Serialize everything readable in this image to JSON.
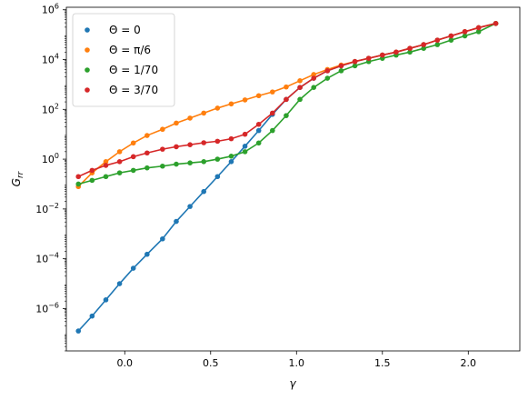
{
  "chart_data": {
    "type": "scatter",
    "xlabel": "γ",
    "ylabel_base": "G",
    "ylabel_sub": "rr",
    "y_scale": "log",
    "xlim": [
      -0.34,
      2.3
    ],
    "ylim_exp": [
      -7.7,
      6.1
    ],
    "x_ticks": [
      0.0,
      0.5,
      1.0,
      1.5,
      2.0
    ],
    "x_tick_labels": [
      "0.0",
      "0.5",
      "1.0",
      "1.5",
      "2.0"
    ],
    "y_ticks_exp": [
      -6,
      -4,
      -2,
      0,
      2,
      4,
      6
    ],
    "y_tick_labels_base": "10",
    "grid": false,
    "legend_position": "top-left",
    "x": [
      -0.27,
      -0.19,
      -0.11,
      -0.03,
      0.05,
      0.13,
      0.22,
      0.3,
      0.38,
      0.46,
      0.54,
      0.62,
      0.7,
      0.78,
      0.86,
      0.94,
      1.02,
      1.1,
      1.18,
      1.26,
      1.34,
      1.42,
      1.5,
      1.58,
      1.66,
      1.74,
      1.82,
      1.9,
      1.98,
      2.06,
      2.16
    ],
    "series": [
      {
        "legend_text": "Θ = 0",
        "color": "#1f77b4",
        "log10_y": [
          -6.9,
          -6.3,
          -5.65,
          -5.0,
          -4.38,
          -3.82,
          -3.2,
          -2.5,
          -1.9,
          -1.3,
          -0.7,
          -0.1,
          0.52,
          1.15,
          1.8,
          2.4,
          2.88,
          3.25,
          3.55,
          3.75,
          3.92,
          4.05,
          4.18,
          4.3,
          4.45,
          4.6,
          4.78,
          4.95,
          5.12,
          5.28,
          5.45
        ]
      },
      {
        "legend_text": "Θ = π/6",
        "color": "#ff7f0e",
        "log10_y": [
          -1.1,
          -0.55,
          -0.1,
          0.3,
          0.65,
          0.95,
          1.2,
          1.45,
          1.65,
          1.85,
          2.05,
          2.22,
          2.38,
          2.55,
          2.7,
          2.9,
          3.15,
          3.4,
          3.6,
          3.78,
          3.92,
          4.05,
          4.18,
          4.3,
          4.45,
          4.6,
          4.78,
          4.95,
          5.12,
          5.28,
          5.45
        ]
      },
      {
        "legend_text": "Θ = 1/70",
        "color": "#2ca02c",
        "log10_y": [
          -1.0,
          -0.85,
          -0.7,
          -0.55,
          -0.45,
          -0.35,
          -0.28,
          -0.2,
          -0.15,
          -0.1,
          0.0,
          0.12,
          0.3,
          0.65,
          1.15,
          1.75,
          2.4,
          2.88,
          3.25,
          3.55,
          3.75,
          3.92,
          4.05,
          4.18,
          4.3,
          4.45,
          4.6,
          4.78,
          4.95,
          5.12,
          5.45
        ]
      },
      {
        "legend_text": "Θ = 3/70",
        "color": "#d62728",
        "log10_y": [
          -0.7,
          -0.45,
          -0.25,
          -0.1,
          0.1,
          0.25,
          0.4,
          0.5,
          0.58,
          0.66,
          0.72,
          0.82,
          1.0,
          1.4,
          1.85,
          2.4,
          2.88,
          3.25,
          3.55,
          3.75,
          3.92,
          4.05,
          4.18,
          4.3,
          4.45,
          4.6,
          4.78,
          4.95,
          5.12,
          5.28,
          5.45
        ]
      }
    ]
  }
}
